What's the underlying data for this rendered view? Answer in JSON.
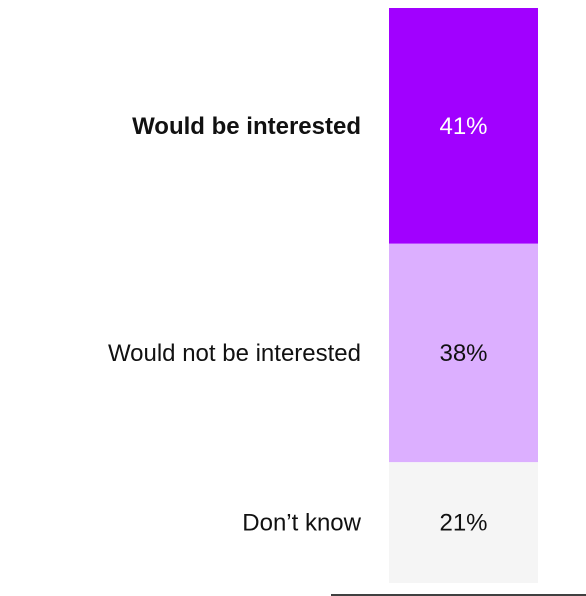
{
  "chart_data": {
    "type": "bar",
    "stacked": true,
    "orientation": "vertical",
    "title": "",
    "xlabel": "",
    "ylabel": "",
    "ylim": [
      0,
      100
    ],
    "grid": false,
    "categories": [
      "Would be interested",
      "Would not be interested",
      "Don’t know"
    ],
    "values": [
      41,
      38,
      21
    ],
    "value_labels": [
      "41%",
      "38%",
      "21%"
    ],
    "emphasized_category": "Would be interested",
    "colors": {
      "segments": [
        "#A100FF",
        "#DCAFFF",
        "#F5F5F5"
      ],
      "value_text": [
        "#FFFFFF",
        "#111111",
        "#111111"
      ],
      "label_text": "#111111",
      "baseline": "#000000"
    }
  }
}
